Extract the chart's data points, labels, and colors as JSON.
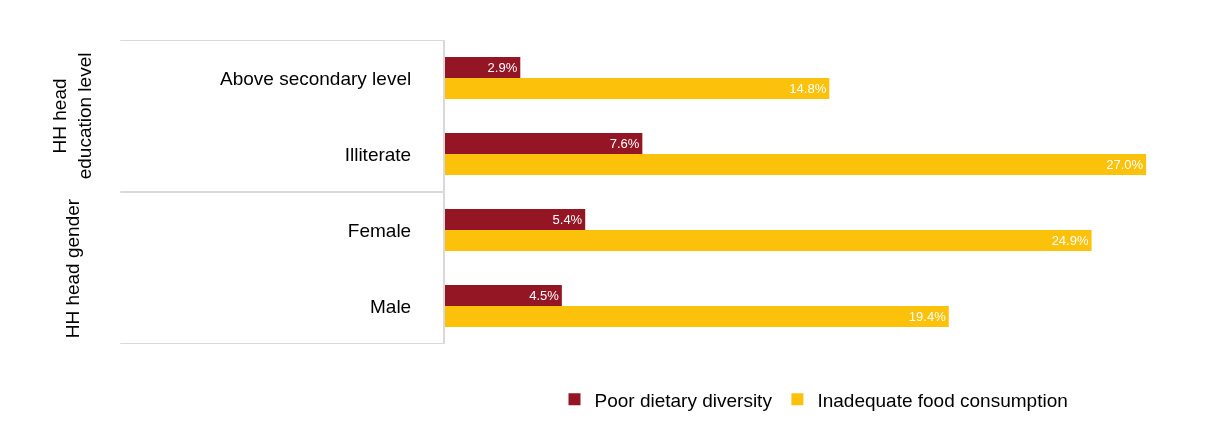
{
  "chart_data": {
    "type": "bar",
    "orientation": "horizontal",
    "categories": [
      "Above secondary level",
      "Illiterate",
      "Female",
      "Male"
    ],
    "series": [
      {
        "name": "Poor dietary diversity",
        "color": "#941524",
        "values": [
          2.9,
          7.6,
          5.4,
          4.5
        ],
        "value_labels": [
          "2.9%",
          "7.6%",
          "5.4%",
          "4.5%"
        ]
      },
      {
        "name": "Inadequate food consumption",
        "color": "#fcc10b",
        "values": [
          14.8,
          27.0,
          24.9,
          19.4
        ],
        "value_labels": [
          "14.8%",
          "27.0%",
          "24.9%",
          "19.4%"
        ]
      }
    ],
    "annotations": [
      "HH head\neducation level",
      "HH head gender"
    ],
    "tick_labels": "y",
    "legend": "bottom"
  }
}
